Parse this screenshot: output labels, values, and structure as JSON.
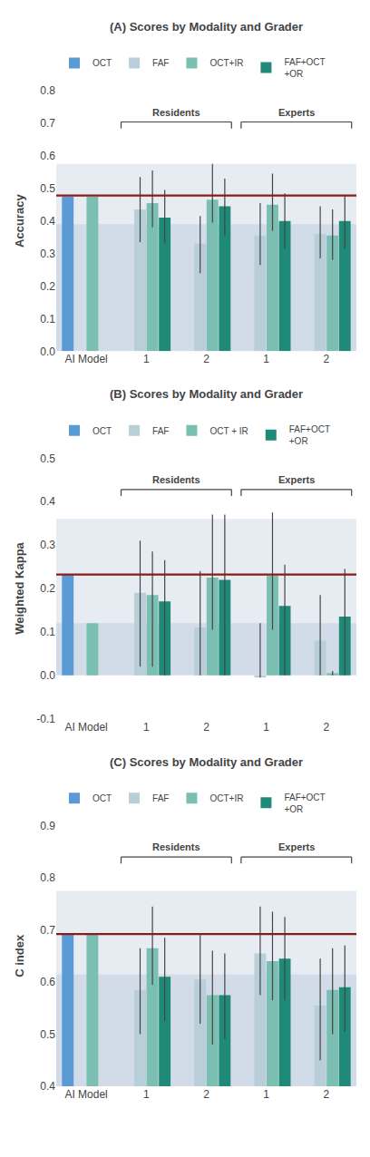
{
  "chart_data": [
    {
      "type": "bar",
      "title": "(A) Scores by Modality and Grader",
      "y_label": "Accuracy",
      "categories": [
        "AI Model",
        "1",
        "2",
        "1",
        "2"
      ],
      "category_groups": [
        null,
        "Residents",
        "Residents",
        "Experts",
        "Experts"
      ],
      "series": [
        {
          "name": "OCT",
          "color": "#5b9bd5",
          "values": [
            0.475,
            null,
            null,
            null,
            null
          ]
        },
        {
          "name": "FAF",
          "color": "#b8ced8",
          "values": [
            null,
            0.435,
            0.33,
            0.355,
            0.36
          ],
          "error_low": [
            null,
            0.335,
            0.24,
            0.265,
            0.285
          ],
          "error_high": [
            null,
            0.535,
            0.415,
            0.455,
            0.445
          ]
        },
        {
          "name": "OCT+IR",
          "color": "#7abfb2",
          "values": [
            0.475,
            0.455,
            0.465,
            0.45,
            0.355
          ],
          "error_low": [
            null,
            0.38,
            0.395,
            0.37,
            0.28
          ],
          "error_high": [
            null,
            0.555,
            0.575,
            0.545,
            0.435
          ]
        },
        {
          "name": "FAF+OCT\n+OR",
          "color": "#1f8a78",
          "values": [
            null,
            0.41,
            0.445,
            0.4,
            0.4
          ],
          "error_low": [
            null,
            0.33,
            0.355,
            0.315,
            0.315
          ],
          "error_high": [
            null,
            0.495,
            0.53,
            0.485,
            0.48
          ]
        }
      ],
      "ylim": [
        0.0,
        0.8
      ],
      "yticks": [
        {
          "value": 0.0,
          "label": "0.0"
        },
        0.1,
        0.2,
        0.3,
        0.4,
        0.5,
        0.6,
        0.7,
        0.8
      ],
      "reference_line": {
        "value": 0.478,
        "color": "#8b1a1a"
      },
      "bands": [
        {
          "from": 0.0,
          "to": 0.575
        },
        {
          "from": 0.0,
          "to": 0.39
        }
      ],
      "grid": false,
      "legend": "top"
    },
    {
      "type": "bar",
      "title": "(B) Scores by Modality and Grader",
      "y_label": "Weighted Kappa",
      "categories": [
        "AI Model",
        "1",
        "2",
        "1",
        "2"
      ],
      "category_groups": [
        null,
        "Residents",
        "Residents",
        "Experts",
        "Experts"
      ],
      "series": [
        {
          "name": "OCT",
          "color": "#5b9bd5",
          "values": [
            0.232,
            null,
            null,
            null,
            null
          ]
        },
        {
          "name": "FAF",
          "color": "#b8ced8",
          "values": [
            null,
            0.19,
            0.11,
            -0.005,
            0.08
          ],
          "error_low": [
            null,
            0.02,
            0.0,
            -0.005,
            0.0
          ],
          "error_high": [
            null,
            0.31,
            0.24,
            0.12,
            0.185
          ]
        },
        {
          "name": "OCT + IR",
          "color": "#7abfb2",
          "values": [
            0.12,
            0.185,
            0.225,
            0.23,
            0.005
          ],
          "error_low": [
            null,
            0.02,
            0.105,
            0.105,
            0.0
          ],
          "error_high": [
            null,
            0.285,
            0.37,
            0.375,
            0.01
          ]
        },
        {
          "name": "FAF+OCT\n+OR",
          "color": "#1f8a78",
          "values": [
            null,
            0.17,
            0.22,
            0.16,
            0.135
          ],
          "error_low": [
            null,
            0.0,
            0.0,
            0.0,
            0.0
          ],
          "error_high": [
            null,
            0.265,
            0.37,
            0.255,
            0.245
          ]
        }
      ],
      "ylim": [
        -0.1,
        0.5
      ],
      "yticks": [
        -0.1,
        {
          "value": 0.0,
          "label": "0.0"
        },
        0.1,
        0.2,
        0.3,
        0.4,
        0.5
      ],
      "reference_line": {
        "value": 0.232,
        "color": "#8b1a1a"
      },
      "bands": [
        {
          "from": 0.0,
          "to": 0.36
        },
        {
          "from": 0.0,
          "to": 0.12
        }
      ],
      "grid": false,
      "legend": "top"
    },
    {
      "type": "bar",
      "title": "(C) Scores by Modality and Grader",
      "y_label": "C index",
      "categories": [
        "AI Model",
        "1",
        "2",
        "1",
        "2"
      ],
      "category_groups": [
        null,
        "Residents",
        "Residents",
        "Experts",
        "Experts"
      ],
      "series": [
        {
          "name": "OCT",
          "color": "#5b9bd5",
          "values": [
            0.692,
            null,
            null,
            null,
            null
          ]
        },
        {
          "name": "FAF",
          "color": "#b8ced8",
          "values": [
            null,
            0.585,
            0.605,
            0.655,
            0.555
          ],
          "error_low": [
            null,
            0.5,
            0.52,
            0.575,
            0.45
          ],
          "error_high": [
            null,
            0.665,
            0.69,
            0.745,
            0.645
          ]
        },
        {
          "name": "OCT+IR",
          "color": "#7abfb2",
          "values": [
            0.692,
            0.665,
            0.575,
            0.64,
            0.585
          ],
          "error_low": [
            null,
            0.595,
            0.48,
            0.565,
            0.5
          ],
          "error_high": [
            null,
            0.745,
            0.66,
            0.735,
            0.665
          ]
        },
        {
          "name": "FAF+OCT\n+OR",
          "color": "#1f8a78",
          "values": [
            null,
            0.61,
            0.575,
            0.645,
            0.59
          ],
          "error_low": [
            null,
            0.525,
            0.49,
            0.565,
            0.505
          ],
          "error_high": [
            null,
            0.685,
            0.655,
            0.725,
            0.67
          ]
        }
      ],
      "ylim": [
        0.4,
        0.9
      ],
      "yticks": [
        0.4,
        0.5,
        0.6,
        0.7,
        0.8,
        0.9
      ],
      "reference_line": {
        "value": 0.692,
        "color": "#8b1a1a"
      },
      "bands": [
        {
          "from": 0.4,
          "to": 0.775
        },
        {
          "from": 0.4,
          "to": 0.615
        }
      ],
      "grid": false,
      "legend": "top"
    }
  ]
}
